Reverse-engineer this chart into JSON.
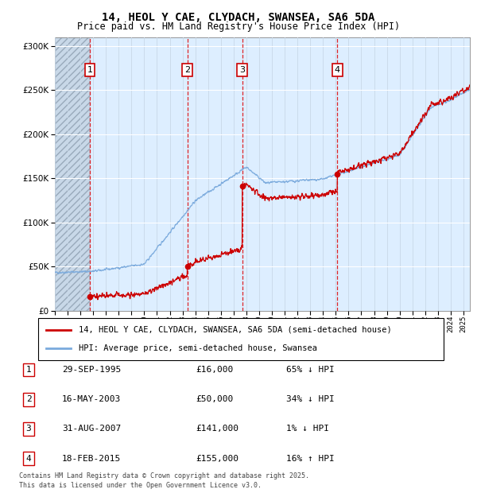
{
  "title": "14, HEOL Y CAE, CLYDACH, SWANSEA, SA6 5DA",
  "subtitle": "Price paid vs. HM Land Registry's House Price Index (HPI)",
  "legend_line1": "14, HEOL Y CAE, CLYDACH, SWANSEA, SA6 5DA (semi-detached house)",
  "legend_line2": "HPI: Average price, semi-detached house, Swansea",
  "footer1": "Contains HM Land Registry data © Crown copyright and database right 2025.",
  "footer2": "This data is licensed under the Open Government Licence v3.0.",
  "sale_color": "#cc0000",
  "hpi_color": "#7aaadd",
  "purchases": [
    {
      "label": "1",
      "date_num": 1995.75,
      "price": 16000,
      "date_str": "29-SEP-1995",
      "price_str": "£16,000",
      "pct_str": "65% ↓ HPI"
    },
    {
      "label": "2",
      "date_num": 2003.37,
      "price": 50000,
      "date_str": "16-MAY-2003",
      "price_str": "£50,000",
      "pct_str": "34% ↓ HPI"
    },
    {
      "label": "3",
      "date_num": 2007.67,
      "price": 141000,
      "date_str": "31-AUG-2007",
      "price_str": "£141,000",
      "pct_str": "1% ↓ HPI"
    },
    {
      "label": "4",
      "date_num": 2015.12,
      "price": 155000,
      "date_str": "18-FEB-2015",
      "price_str": "£155,000",
      "pct_str": "16% ↑ HPI"
    }
  ],
  "ylim": [
    0,
    310000
  ],
  "xlim_start": 1993.0,
  "xlim_end": 2025.5,
  "hatch_end": 1995.75,
  "background_color": "#ddeeff",
  "title_fontsize": 10,
  "subtitle_fontsize": 8.5
}
